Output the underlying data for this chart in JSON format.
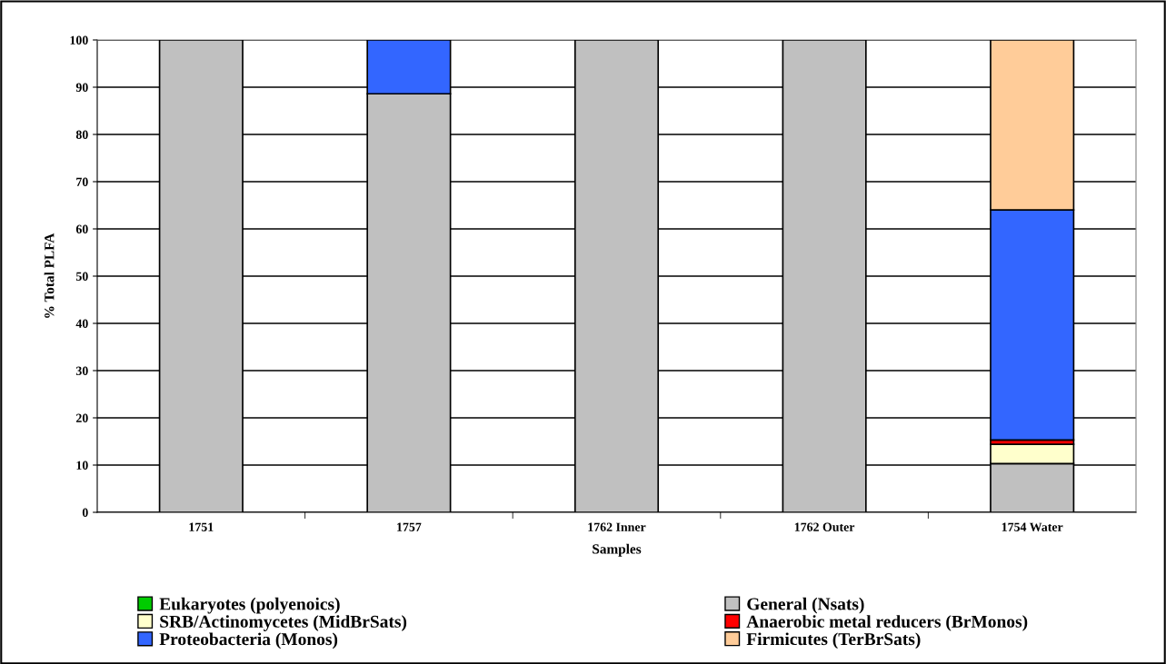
{
  "chart_data": {
    "type": "bar",
    "stacked": true,
    "xlabel": "Samples",
    "ylabel": "% Total PLFA",
    "categories": [
      "1751",
      "1757",
      "1762 Inner",
      "1762 Outer",
      "1754 Water"
    ],
    "series": [
      {
        "name": "Eukaryotes (polyenoics)",
        "color": "#00cc00",
        "values": [
          0,
          0,
          0,
          0,
          0
        ]
      },
      {
        "name": "General (Nsats)",
        "color": "#c0c0c0",
        "values": [
          100,
          88.6,
          100,
          100,
          10.3
        ]
      },
      {
        "name": "SRB/Actinomycetes (MidBrSats)",
        "color": "#ffffcc",
        "values": [
          0,
          0,
          0,
          0,
          4.1
        ]
      },
      {
        "name": "Anaerobic metal reducers (BrMonos)",
        "color": "#ff0000",
        "values": [
          0,
          0,
          0,
          0,
          0.9
        ]
      },
      {
        "name": "Proteobacteria (Monos)",
        "color": "#3366ff",
        "values": [
          0,
          11.4,
          0,
          0,
          48.7
        ]
      },
      {
        "name": "Firmicutes (TerBrSats)",
        "color": "#ffcc99",
        "values": [
          0,
          0,
          0,
          0,
          36.0
        ]
      }
    ],
    "ylim": [
      0,
      100
    ],
    "yticks": [
      0,
      10,
      20,
      30,
      40,
      50,
      60,
      70,
      80,
      90,
      100
    ],
    "grid": "y",
    "legend": "bottom"
  }
}
